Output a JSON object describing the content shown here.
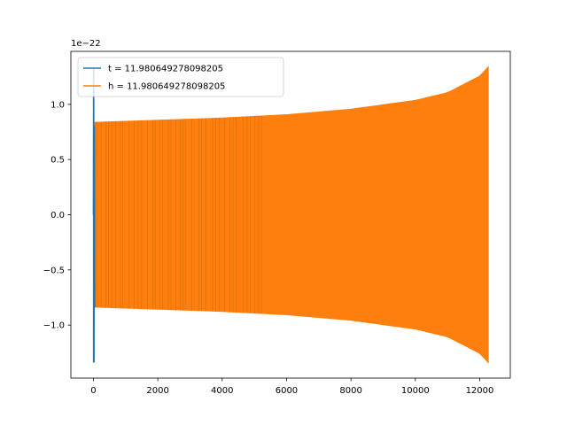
{
  "chart_data": {
    "type": "line",
    "title": "",
    "xlabel": "",
    "ylabel": "",
    "y_offset_label": "1e−22",
    "xlim": [
      -700,
      12950
    ],
    "ylim": [
      -1.48,
      1.48
    ],
    "x_ticks": [
      0,
      2000,
      4000,
      6000,
      8000,
      10000,
      12000
    ],
    "y_ticks": [
      -1.0,
      -0.5,
      0.0,
      0.5,
      1.0
    ],
    "y_tick_labels": [
      "−1.0",
      "−0.5",
      "0.0",
      "0.5",
      "1.0"
    ],
    "grid": false,
    "legend_placement": "upper-left",
    "series": [
      {
        "name": "t = 11.980649278098205",
        "color": "#1f77b4",
        "description_points": {
          "x": [
            0,
            10,
            20,
            30,
            40
          ],
          "y": [
            0.0,
            1.33,
            -1.34,
            0.8,
            -0.84
          ]
        }
      },
      {
        "name": "h = 11.980649278098205",
        "color": "#ff7f0e",
        "envelope": {
          "x": [
            0,
            2000,
            4000,
            6000,
            8000,
            10000,
            11000,
            12000,
            12280
          ],
          "upper": [
            0.84,
            0.86,
            0.88,
            0.91,
            0.96,
            1.04,
            1.11,
            1.26,
            1.35
          ],
          "lower": [
            -0.84,
            -0.86,
            -0.88,
            -0.91,
            -0.96,
            -1.04,
            -1.11,
            -1.26,
            -1.35
          ]
        }
      }
    ]
  }
}
